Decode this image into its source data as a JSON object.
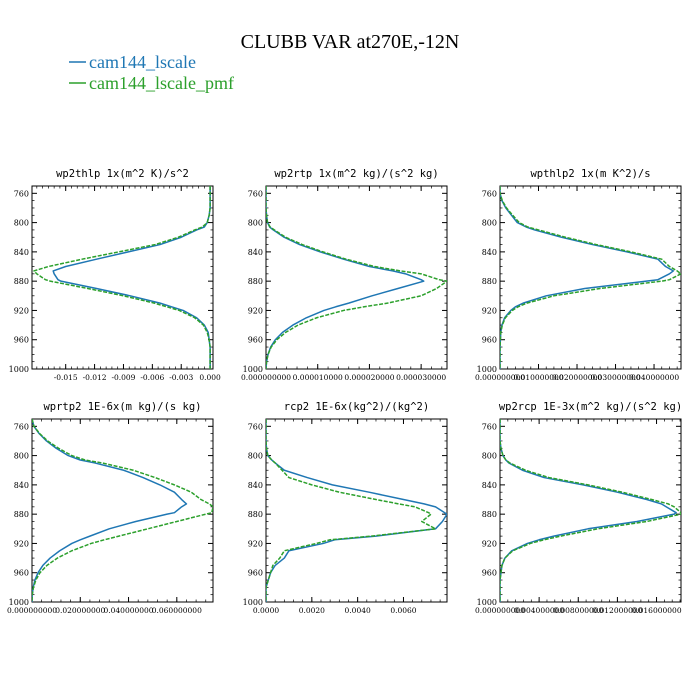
{
  "figure": {
    "title": "CLUBB VAR at270E,-12N",
    "legend": [
      {
        "label": "cam144_lscale",
        "color": "#1f77b4"
      },
      {
        "label": "cam144_lscale_pmf",
        "color": "#2ca02c"
      }
    ]
  },
  "chart_data": [
    {
      "type": "line",
      "title": "wp2thlp  1x(m^2 K)/s^2",
      "xticks": [
        "-0.015",
        "-0.012",
        "-0.009",
        "-0.006",
        "-0.003",
        "0.000"
      ],
      "xtick_values": [
        -0.015,
        -0.012,
        -0.009,
        -0.006,
        -0.003,
        0.0
      ],
      "xlim": [
        -0.0185,
        0.0003
      ],
      "yticks": [
        "760",
        "800",
        "840",
        "880",
        "920",
        "960",
        "1000"
      ],
      "ylim": [
        1000,
        750
      ],
      "y": [
        750,
        760,
        770,
        780,
        790,
        800,
        806,
        810,
        820,
        830,
        840,
        850,
        860,
        866,
        870,
        878,
        880,
        890,
        900,
        910,
        915,
        920,
        930,
        940,
        950,
        960,
        970,
        980,
        990,
        1000
      ],
      "series": [
        {
          "name": "cam144_lscale",
          "color": "#1f77b4",
          "dashed": false,
          "x": [
            0,
            0,
            0,
            0,
            -0.0001,
            -0.0003,
            -0.0006,
            -0.0014,
            -0.003,
            -0.0052,
            -0.0085,
            -0.0118,
            -0.015,
            -0.0163,
            -0.0162,
            -0.0158,
            -0.0155,
            -0.0118,
            -0.0083,
            -0.0052,
            -0.004,
            -0.0028,
            -0.0014,
            -0.0006,
            -0.0002,
            -0.0001,
            0,
            0,
            0,
            0
          ]
        },
        {
          "name": "cam144_lscale_pmf",
          "color": "#2ca02c",
          "dashed": true,
          "x": [
            0,
            0,
            0,
            0,
            -0.0001,
            -0.0003,
            -0.0008,
            -0.0016,
            -0.0033,
            -0.0057,
            -0.0095,
            -0.0133,
            -0.0168,
            -0.0183,
            -0.018,
            -0.0171,
            -0.0166,
            -0.0127,
            -0.009,
            -0.0058,
            -0.0045,
            -0.0032,
            -0.0016,
            -0.0007,
            -0.0003,
            -0.0001,
            0,
            0,
            0,
            0
          ]
        }
      ]
    },
    {
      "type": "line",
      "title": "wp2rtp  1x(m^2 kg)/(s^2 kg)",
      "xticks": [
        "0.000000000",
        "0.000010000",
        "0.000020000",
        "0.000030000"
      ],
      "xtick_values": [
        0,
        1e-05,
        2e-05,
        3e-05
      ],
      "xlim": [
        0,
        3.5e-05
      ],
      "yticks": [
        "760",
        "800",
        "840",
        "880",
        "920",
        "960",
        "1000"
      ],
      "ylim": [
        1000,
        750
      ],
      "y": [
        750,
        760,
        770,
        780,
        790,
        800,
        806,
        810,
        820,
        830,
        840,
        850,
        860,
        866,
        870,
        878,
        880,
        890,
        900,
        910,
        915,
        920,
        930,
        940,
        950,
        960,
        970,
        980,
        990,
        1000
      ],
      "series": [
        {
          "name": "cam144_lscale",
          "color": "#1f77b4",
          "dashed": false,
          "x": [
            0,
            0,
            0,
            0,
            1e-07,
            3e-07,
            7e-07,
            1.4e-06,
            3.5e-06,
            6.5e-06,
            1.05e-05,
            1.5e-05,
            2e-05,
            2.45e-05,
            2.7e-05,
            3e-05,
            3.05e-05,
            2.55e-05,
            2.05e-05,
            1.6e-05,
            1.35e-05,
            1.12e-05,
            7.8e-06,
            5.2e-06,
            3.2e-06,
            1.8e-06,
            9e-07,
            4e-07,
            1e-07,
            0
          ]
        },
        {
          "name": "cam144_lscale_pmf",
          "color": "#2ca02c",
          "dashed": true,
          "x": [
            0,
            0,
            0,
            0,
            1e-07,
            3e-07,
            8e-07,
            1.6e-06,
            3.8e-06,
            7e-06,
            1.1e-05,
            1.55e-05,
            2.1e-05,
            2.6e-05,
            3e-05,
            3.35e-05,
            3.5e-05,
            3.3e-05,
            3e-05,
            2.35e-05,
            1.9e-05,
            1.5e-05,
            9.8e-06,
            6.2e-06,
            3.8e-06,
            2.1e-06,
            1e-06,
            4e-07,
            1e-07,
            0
          ]
        }
      ]
    },
    {
      "type": "line",
      "title": "wpthlp2  1x(m K^2)/s",
      "xticks": [
        "0.000000000",
        "0.010000000",
        "0.020000000",
        "0.030000000",
        "0.040000000"
      ],
      "xtick_values": [
        0,
        0.01,
        0.02,
        0.03,
        0.04
      ],
      "xlim": [
        0,
        0.047
      ],
      "yticks": [
        "760",
        "800",
        "840",
        "880",
        "920",
        "960",
        "1000"
      ],
      "ylim": [
        1000,
        750
      ],
      "y": [
        750,
        760,
        770,
        780,
        790,
        800,
        806,
        810,
        820,
        830,
        840,
        850,
        860,
        866,
        870,
        878,
        880,
        890,
        900,
        910,
        915,
        920,
        930,
        940,
        950,
        960,
        970,
        980,
        990,
        1000
      ],
      "series": [
        {
          "name": "cam144_lscale",
          "color": "#1f77b4",
          "dashed": false,
          "x": [
            0,
            0,
            0.0005,
            0.0015,
            0.003,
            0.0045,
            0.0068,
            0.009,
            0.016,
            0.024,
            0.033,
            0.041,
            0.043,
            0.045,
            0.044,
            0.041,
            0.038,
            0.022,
            0.012,
            0.006,
            0.004,
            0.0028,
            0.0012,
            0.0005,
            0.0002,
            0.0001,
            0,
            0,
            0,
            0
          ]
        },
        {
          "name": "cam144_lscale_pmf",
          "color": "#2ca02c",
          "dashed": true,
          "x": [
            0,
            0,
            0.0006,
            0.0017,
            0.0033,
            0.005,
            0.0072,
            0.01,
            0.017,
            0.025,
            0.034,
            0.042,
            0.044,
            0.046,
            0.047,
            0.044,
            0.042,
            0.026,
            0.014,
            0.007,
            0.0047,
            0.0032,
            0.0014,
            0.0006,
            0.0002,
            0.0001,
            0,
            0,
            0,
            0
          ]
        }
      ]
    },
    {
      "type": "line",
      "title": "wprtp2  1E-6x(m kg)/(s kg)",
      "xticks": [
        "0.000000000",
        "0.020000000",
        "0.040000000",
        "0.060000000"
      ],
      "xtick_values": [
        0,
        0.02,
        0.04,
        0.06
      ],
      "xlim": [
        0,
        0.075
      ],
      "yticks": [
        "760",
        "800",
        "840",
        "880",
        "920",
        "960",
        "1000"
      ],
      "ylim": [
        1000,
        750
      ],
      "y": [
        750,
        760,
        770,
        780,
        790,
        800,
        806,
        810,
        820,
        830,
        840,
        850,
        860,
        866,
        870,
        878,
        880,
        890,
        900,
        910,
        915,
        920,
        930,
        940,
        950,
        960,
        970,
        980,
        990,
        1000
      ],
      "series": [
        {
          "name": "cam144_lscale",
          "color": "#1f77b4",
          "dashed": false,
          "x": [
            0,
            0.0008,
            0.003,
            0.006,
            0.01,
            0.015,
            0.02,
            0.026,
            0.038,
            0.046,
            0.053,
            0.059,
            0.062,
            0.064,
            0.062,
            0.059,
            0.056,
            0.043,
            0.032,
            0.024,
            0.02,
            0.0165,
            0.0115,
            0.0075,
            0.0045,
            0.0025,
            0.0012,
            0.0005,
            0.0001,
            0
          ]
        },
        {
          "name": "cam144_lscale_pmf",
          "color": "#2ca02c",
          "dashed": true,
          "x": [
            0,
            0.0008,
            0.0032,
            0.0065,
            0.011,
            0.0165,
            0.022,
            0.029,
            0.042,
            0.051,
            0.059,
            0.066,
            0.07,
            0.0735,
            0.075,
            0.0745,
            0.072,
            0.06,
            0.048,
            0.036,
            0.03,
            0.0245,
            0.0165,
            0.0105,
            0.0062,
            0.0033,
            0.0016,
            0.0006,
            0.0001,
            0
          ]
        }
      ]
    },
    {
      "type": "line",
      "title": "rcp2  1E-6x(kg^2)/(kg^2)",
      "xticks": [
        "0.0000",
        "0.0020",
        "0.0040",
        "0.0060"
      ],
      "xtick_values": [
        0,
        0.002,
        0.004,
        0.006
      ],
      "xlim": [
        0,
        0.0079
      ],
      "yticks": [
        "760",
        "800",
        "840",
        "880",
        "920",
        "960",
        "1000"
      ],
      "ylim": [
        1000,
        750
      ],
      "y": [
        750,
        760,
        770,
        780,
        790,
        800,
        806,
        810,
        820,
        830,
        840,
        850,
        860,
        866,
        870,
        878,
        880,
        890,
        900,
        910,
        915,
        920,
        930,
        940,
        950,
        960,
        970,
        980,
        990,
        1000
      ],
      "series": [
        {
          "name": "cam144_lscale",
          "color": "#1f77b4",
          "dashed": false,
          "x": [
            0,
            0,
            0,
            0,
            2e-05,
            8e-05,
            0.00025,
            0.0004,
            0.0008,
            0.0018,
            0.0029,
            0.0045,
            0.006,
            0.0069,
            0.0074,
            0.0078,
            0.0079,
            0.0077,
            0.0074,
            0.0048,
            0.003,
            0.0025,
            0.001,
            0.0008,
            0.0004,
            0.0002,
            0.0001,
            0,
            0,
            0
          ]
        },
        {
          "name": "cam144_lscale_pmf",
          "color": "#2ca02c",
          "dashed": true,
          "x": [
            0,
            0,
            0,
            0,
            2e-05,
            8e-05,
            0.00025,
            0.0004,
            0.0007,
            0.001,
            0.002,
            0.0032,
            0.0048,
            0.0058,
            0.0065,
            0.0071,
            0.0072,
            0.0068,
            0.0074,
            0.0046,
            0.0028,
            0.0022,
            0.0008,
            0.0006,
            0.0003,
            0.0002,
            0.0001,
            0,
            0,
            0
          ]
        }
      ]
    },
    {
      "type": "line",
      "title": "wp2rcp  1E-3x(m^2 kg)/(s^2 kg)",
      "xticks": [
        "0.000000000",
        "0.004000000",
        "0.008000000",
        "0.012000000",
        "0.016000000"
      ],
      "xtick_values": [
        0,
        0.004,
        0.008,
        0.012,
        0.016
      ],
      "xlim": [
        0,
        0.0185
      ],
      "yticks": [
        "760",
        "800",
        "840",
        "880",
        "920",
        "960",
        "1000"
      ],
      "ylim": [
        1000,
        750
      ],
      "y": [
        750,
        760,
        770,
        780,
        790,
        800,
        806,
        810,
        820,
        830,
        840,
        850,
        860,
        866,
        870,
        878,
        880,
        890,
        900,
        910,
        915,
        920,
        930,
        940,
        950,
        960,
        970,
        980,
        990,
        1000
      ],
      "series": [
        {
          "name": "cam144_lscale",
          "color": "#1f77b4",
          "dashed": false,
          "x": [
            0,
            0,
            0,
            0,
            0.0001,
            0.0003,
            0.0006,
            0.0009,
            0.0023,
            0.0045,
            0.0085,
            0.012,
            0.015,
            0.0165,
            0.017,
            0.018,
            0.0178,
            0.014,
            0.009,
            0.0055,
            0.004,
            0.0028,
            0.0012,
            0.0005,
            0.0002,
            0.0001,
            0,
            0,
            0,
            0
          ]
        },
        {
          "name": "cam144_lscale_pmf",
          "color": "#2ca02c",
          "dashed": true,
          "x": [
            0,
            0,
            0,
            0,
            0.0001,
            0.0003,
            0.0006,
            0.001,
            0.0026,
            0.005,
            0.009,
            0.0125,
            0.0155,
            0.0172,
            0.0178,
            0.0185,
            0.0185,
            0.015,
            0.01,
            0.0062,
            0.0045,
            0.0031,
            0.0013,
            0.0005,
            0.0002,
            0.0001,
            0,
            0,
            0,
            0
          ]
        }
      ]
    }
  ]
}
